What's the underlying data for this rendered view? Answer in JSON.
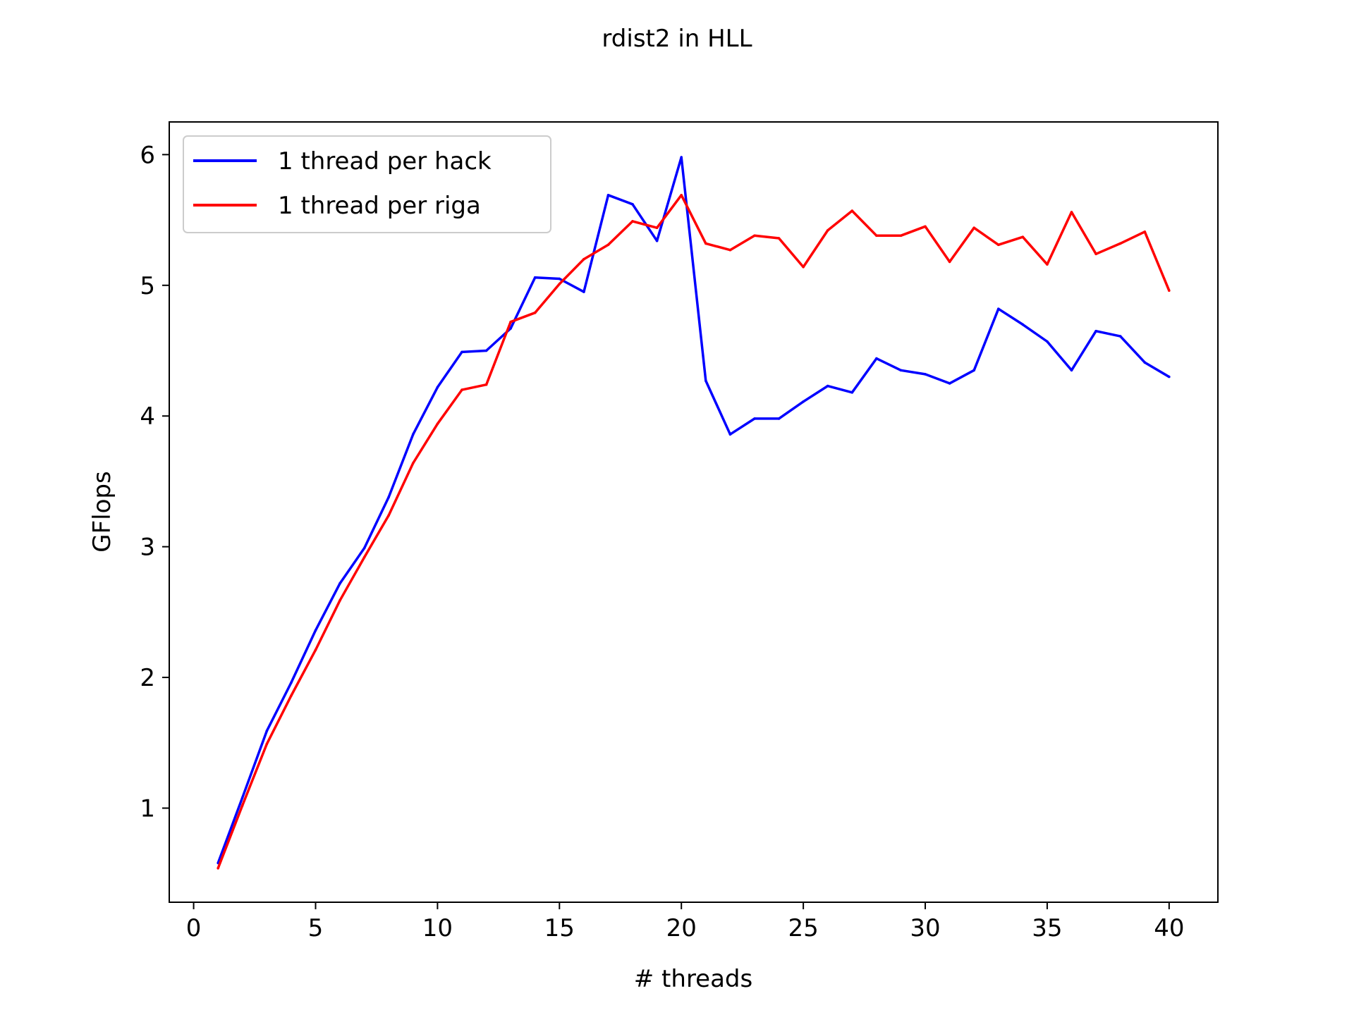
{
  "chart_data": {
    "type": "line",
    "title": "rdist2 in HLL",
    "xlabel": "# threads",
    "ylabel": "GFlops",
    "xlim": [
      -1,
      42
    ],
    "ylim": [
      0.28,
      6.25
    ],
    "xticks": [
      0,
      5,
      10,
      15,
      20,
      25,
      30,
      35,
      40
    ],
    "yticks": [
      1,
      2,
      3,
      4,
      5,
      6
    ],
    "grid": false,
    "legend_position": "top-left",
    "x": [
      1,
      2,
      3,
      4,
      5,
      6,
      7,
      8,
      9,
      10,
      11,
      12,
      13,
      14,
      15,
      16,
      17,
      18,
      19,
      20,
      21,
      22,
      23,
      24,
      25,
      26,
      27,
      28,
      29,
      30,
      31,
      32,
      33,
      34,
      35,
      36,
      37,
      38,
      39,
      40
    ],
    "series": [
      {
        "name": "1 thread per hack",
        "color": "#0000ff",
        "values": [
          0.58,
          1.08,
          1.59,
          1.96,
          2.36,
          2.72,
          2.99,
          3.38,
          3.86,
          4.22,
          4.49,
          4.5,
          4.67,
          5.06,
          5.05,
          4.95,
          5.69,
          5.62,
          5.34,
          5.98,
          4.27,
          3.86,
          3.98,
          3.98,
          4.11,
          4.23,
          4.18,
          4.44,
          4.35,
          4.32,
          4.25,
          4.35,
          4.82,
          4.7,
          4.57,
          4.35,
          4.65,
          4.61,
          4.41,
          4.3
        ]
      },
      {
        "name": "1 thread per riga",
        "color": "#ff0000",
        "values": [
          0.54,
          1.02,
          1.49,
          1.86,
          2.21,
          2.59,
          2.92,
          3.24,
          3.64,
          3.94,
          4.2,
          4.24,
          4.72,
          4.79,
          5.01,
          5.2,
          5.31,
          5.49,
          5.44,
          5.69,
          5.32,
          5.27,
          5.38,
          5.36,
          5.14,
          5.42,
          5.57,
          5.38,
          5.38,
          5.45,
          5.18,
          5.44,
          5.31,
          5.37,
          5.16,
          5.56,
          5.24,
          5.32,
          5.41,
          4.96
        ]
      }
    ]
  }
}
